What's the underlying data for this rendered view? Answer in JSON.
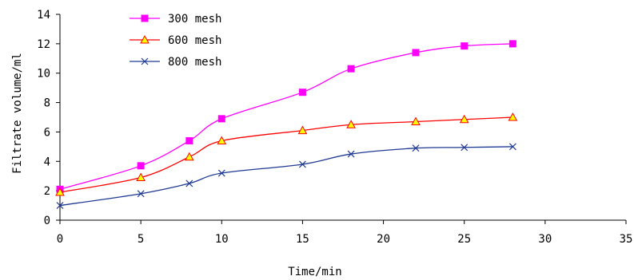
{
  "chart_data": {
    "type": "line",
    "xlabel": "Time/min",
    "ylabel": "Filtrate volume/ml",
    "xlim": [
      0,
      35
    ],
    "ylim": [
      0,
      14
    ],
    "xticks": [
      "0",
      "5",
      "10",
      "15",
      "20",
      "25",
      "30",
      "35"
    ],
    "yticks": [
      "0",
      "2",
      "4",
      "6",
      "8",
      "10",
      "12",
      "14"
    ],
    "grid": false,
    "legend_position": "top-left",
    "series": [
      {
        "name": "300 mesh",
        "color": "#ff00ff",
        "marker": "square",
        "x": [
          0,
          5,
          8,
          10,
          15,
          18,
          22,
          25,
          28
        ],
        "y": [
          2.1,
          3.7,
          5.4,
          6.9,
          8.7,
          10.3,
          11.4,
          11.85,
          12.0
        ]
      },
      {
        "name": "600 mesh",
        "color": "#ff0000",
        "marker": "triangle",
        "x": [
          0,
          5,
          8,
          10,
          15,
          18,
          22,
          25,
          28
        ],
        "y": [
          1.9,
          2.9,
          4.3,
          5.4,
          6.1,
          6.5,
          6.7,
          6.85,
          7.0
        ]
      },
      {
        "name": "800 mesh",
        "color": "#1f3a93",
        "marker": "x",
        "x": [
          0,
          5,
          8,
          10,
          15,
          18,
          22,
          25,
          28
        ],
        "y": [
          1.0,
          1.8,
          2.5,
          3.2,
          3.8,
          4.5,
          4.9,
          4.95,
          5.0
        ]
      }
    ]
  }
}
